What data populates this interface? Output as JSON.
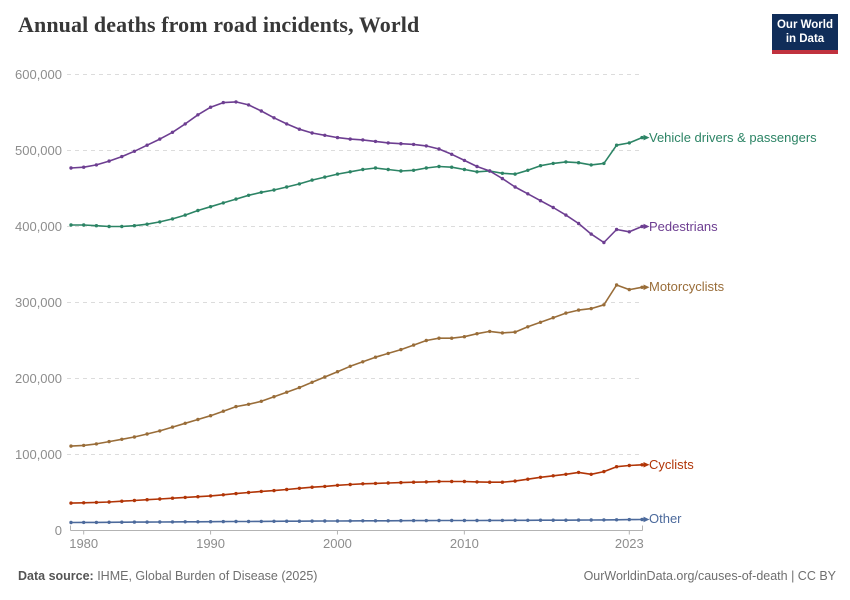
{
  "header": {
    "title": "Annual deaths from road incidents, World",
    "logo": {
      "line1": "Our World",
      "line2": "in Data"
    }
  },
  "footer": {
    "source_label": "Data source:",
    "source_value": " IHME, Global Burden of Disease (2025)",
    "rights": "OurWorldinData.org/causes-of-death | CC BY"
  },
  "colors": {
    "grid": "#dcdcdc",
    "axis": "#b3b3b3",
    "tick_label": "#8d8d8d",
    "title": "#383838",
    "footer_text": "#6f6f6f",
    "logo_bg": "#102d59",
    "logo_stripe": "#c0323e"
  },
  "chart_data": {
    "type": "line",
    "title": "Annual deaths from road incidents, World",
    "xlabel": "",
    "ylabel": "",
    "grid": true,
    "legend_position": "right-end-labels",
    "xlim": [
      1979,
      2024
    ],
    "ylim": [
      0,
      600000
    ],
    "x_ticks": [
      1980,
      1990,
      2000,
      2010,
      2023
    ],
    "y_ticks": [
      {
        "value": 0,
        "label": "0"
      },
      {
        "value": 100000,
        "label": "100,000"
      },
      {
        "value": 200000,
        "label": "200,000"
      },
      {
        "value": 300000,
        "label": "300,000"
      },
      {
        "value": 400000,
        "label": "400,000"
      },
      {
        "value": 500000,
        "label": "500,000"
      },
      {
        "value": 600000,
        "label": "600,000"
      }
    ],
    "x": [
      1979,
      1980,
      1981,
      1982,
      1983,
      1984,
      1985,
      1986,
      1987,
      1988,
      1989,
      1990,
      1991,
      1992,
      1993,
      1994,
      1995,
      1996,
      1997,
      1998,
      1999,
      2000,
      2001,
      2002,
      2003,
      2004,
      2005,
      2006,
      2007,
      2008,
      2009,
      2010,
      2011,
      2012,
      2013,
      2014,
      2015,
      2016,
      2017,
      2018,
      2019,
      2020,
      2021,
      2022,
      2023,
      2024
    ],
    "series": [
      {
        "name": "Vehicle drivers & passengers",
        "color": "#2C8465",
        "values": [
          402000,
          402000,
          401000,
          400000,
          400000,
          401000,
          403000,
          406000,
          410000,
          415000,
          421000,
          426000,
          431000,
          436000,
          441000,
          445000,
          448000,
          452000,
          456000,
          461000,
          465000,
          469000,
          472000,
          475000,
          477000,
          475000,
          473000,
          474000,
          477000,
          479000,
          478000,
          475000,
          472000,
          473000,
          470000,
          469000,
          474000,
          480000,
          483000,
          485000,
          484000,
          481000,
          483000,
          507000,
          510000,
          517000
        ]
      },
      {
        "name": "Pedestrians",
        "color": "#6D3E91",
        "values": [
          477000,
          478000,
          481000,
          486000,
          492000,
          499000,
          507000,
          515000,
          524000,
          535000,
          547000,
          557000,
          563000,
          564000,
          560000,
          552000,
          543000,
          535000,
          528000,
          523000,
          520000,
          517000,
          515000,
          514000,
          512000,
          510000,
          509000,
          508000,
          506000,
          502000,
          495000,
          487000,
          479000,
          473000,
          463000,
          452000,
          443000,
          434000,
          425000,
          415000,
          404000,
          390000,
          379000,
          396000,
          393000,
          400000
        ]
      },
      {
        "name": "Motorcyclists",
        "color": "#996D39",
        "values": [
          111000,
          112000,
          114000,
          117000,
          120000,
          123000,
          127000,
          131000,
          136000,
          141000,
          146000,
          151000,
          157000,
          163000,
          166000,
          170000,
          176000,
          182000,
          188000,
          195000,
          202000,
          209000,
          216000,
          222000,
          228000,
          233000,
          238000,
          244000,
          250000,
          253000,
          253000,
          255000,
          259000,
          262000,
          260000,
          261000,
          268000,
          274000,
          280000,
          286000,
          290000,
          292000,
          297000,
          323000,
          317000,
          320000
        ]
      },
      {
        "name": "Cyclists",
        "color": "#B13507",
        "values": [
          36000,
          36500,
          37000,
          37500,
          38500,
          39500,
          40500,
          41500,
          42500,
          43500,
          44500,
          45500,
          47000,
          48500,
          50000,
          51500,
          52500,
          54000,
          55500,
          57000,
          58000,
          59500,
          60500,
          61500,
          62000,
          62500,
          63000,
          63500,
          64000,
          64500,
          64500,
          64500,
          64000,
          63500,
          63500,
          65000,
          67500,
          70000,
          72000,
          74000,
          76500,
          74000,
          77500,
          84000,
          85500,
          86500
        ]
      },
      {
        "name": "Other",
        "color": "#4C6A9C",
        "values": [
          10500,
          10600,
          10700,
          10800,
          10900,
          11000,
          11100,
          11200,
          11300,
          11400,
          11500,
          11600,
          11700,
          11800,
          11900,
          12000,
          12100,
          12200,
          12300,
          12400,
          12500,
          12500,
          12600,
          12700,
          12800,
          12800,
          12900,
          13000,
          13000,
          13100,
          13100,
          13200,
          13200,
          13300,
          13300,
          13400,
          13400,
          13500,
          13500,
          13600,
          13700,
          13800,
          13900,
          14100,
          14300,
          14500
        ]
      }
    ]
  }
}
